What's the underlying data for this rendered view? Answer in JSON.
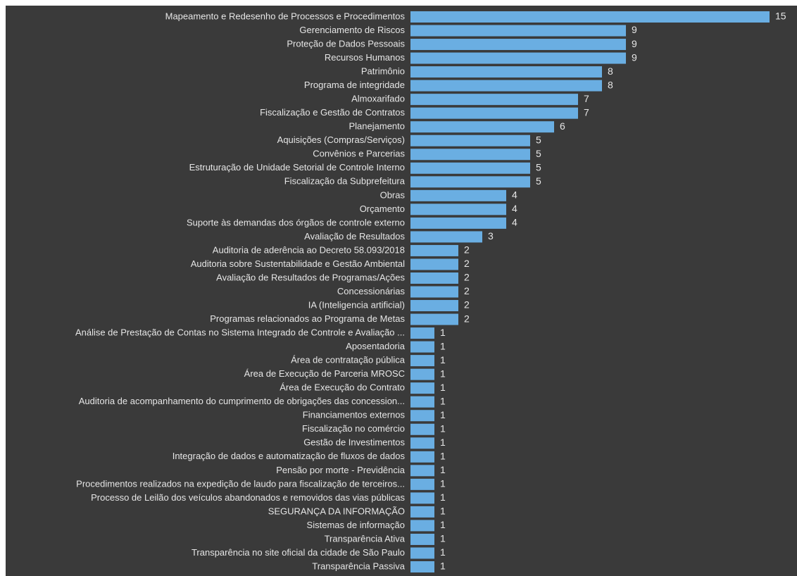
{
  "chart_data": {
    "type": "barh",
    "color": "#6aaee2",
    "categories": [
      "Mapeamento e Redesenho de Processos e Procedimentos",
      "Gerenciamento de Riscos",
      "Proteção de Dados Pessoais",
      "Recursos Humanos",
      "Patrimônio",
      "Programa de integridade",
      "Almoxarifado",
      "Fiscalização e Gestão de Contratos",
      "Planejamento",
      "Aquisições (Compras/Serviços)",
      "Convênios e Parcerias",
      "Estruturação de Unidade Setorial de Controle Interno",
      "Fiscalização da Subprefeitura",
      "Obras",
      "Orçamento",
      "Suporte às demandas dos órgãos de controle externo",
      "Avaliação de Resultados",
      "Auditoria de aderência ao Decreto 58.093/2018",
      "Auditoria sobre Sustentabilidade e Gestão Ambiental",
      "Avaliação de Resultados de Programas/Ações",
      "Concessionárias",
      "IA (Inteligencia artificial)",
      "Programas relacionados ao Programa de Metas",
      "Análise de Prestação de Contas no Sistema Integrado de Controle e Avaliação ...",
      "Aposentadoria",
      "Área de contratação pública",
      "Área de Execução de Parceria MROSC",
      "Área de Execução do Contrato",
      "Auditoria de acompanhamento do cumprimento de obrigações das concession...",
      "Financiamentos externos",
      "Fiscalização no comércio",
      "Gestão de Investimentos",
      "Integração de dados e automatização de fluxos de dados",
      "Pensão por morte - Previdência",
      "Procedimentos realizados na expedição de laudo para fiscalização de terceiros...",
      "Processo de Leilão dos veículos abandonados e removidos das vias públicas",
      "SEGURANÇA DA INFORMAÇÃO",
      "Sistemas de informação",
      "Transparência Ativa",
      "Transparência no site oficial da cidade de São Paulo",
      "Transparência Passiva"
    ],
    "values": [
      15,
      9,
      9,
      9,
      8,
      8,
      7,
      7,
      6,
      5,
      5,
      5,
      5,
      4,
      4,
      4,
      3,
      2,
      2,
      2,
      2,
      2,
      2,
      1,
      1,
      1,
      1,
      1,
      1,
      1,
      1,
      1,
      1,
      1,
      1,
      1,
      1,
      1,
      1,
      1,
      1
    ]
  }
}
